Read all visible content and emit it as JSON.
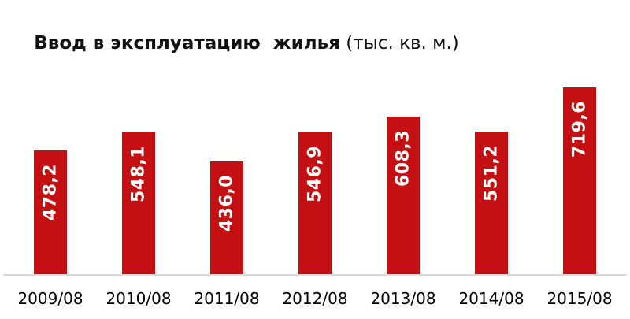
{
  "title": {
    "main": "Ввод в эксплуатацию  жилья",
    "unit": " (тыс. кв. м.)"
  },
  "colors": {
    "bar": "#c40f13",
    "bar_value_text": "#ffffff",
    "axis_line": "#d9d9d9",
    "title_text": "#111111",
    "x_label_text": "#000000",
    "background": "#ffffff"
  },
  "chart_data": {
    "type": "bar",
    "title": "Ввод в эксплуатацию  жилья (тыс. кв. м.)",
    "categories": [
      "2009/08",
      "2010/08",
      "2011/08",
      "2012/08",
      "2013/08",
      "2014/08",
      "2015/08"
    ],
    "values": [
      478.2,
      548.1,
      436.0,
      546.9,
      608.3,
      551.2,
      719.6
    ],
    "value_labels": [
      "478,2",
      "548,1",
      "436,0",
      "546,9",
      "608,3",
      "551,2",
      "719,6"
    ],
    "xlabel": "",
    "ylabel": "",
    "ylim": [
      0,
      800
    ],
    "grid": false,
    "legend": false,
    "value_label_rotation_deg": -90,
    "value_label_position": "inside-top"
  }
}
